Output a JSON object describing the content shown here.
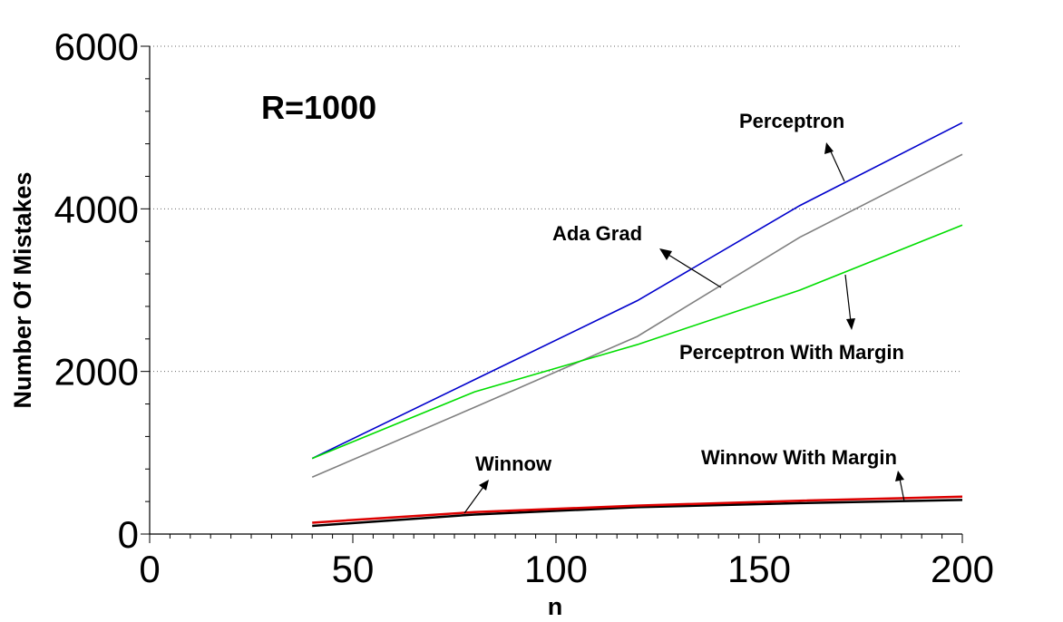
{
  "chart_data": {
    "type": "line",
    "title": "",
    "xlabel": "n",
    "ylabel": "Number Of Mistakes",
    "xlim": [
      0,
      200
    ],
    "ylim": [
      0,
      6000
    ],
    "xticks": [
      0,
      50,
      100,
      150,
      200
    ],
    "yticks": [
      0,
      2000,
      4000,
      6000
    ],
    "grid": "horizontal dotted",
    "x": [
      40,
      80,
      120,
      160,
      200
    ],
    "series": [
      {
        "name": "Perceptron",
        "color": "#0000cc",
        "values": [
          930,
          1900,
          2870,
          4040,
          5060
        ]
      },
      {
        "name": "Ada Grad",
        "color": "#808080",
        "values": [
          700,
          1560,
          2430,
          3650,
          4670
        ]
      },
      {
        "name": "Perceptron With Margin",
        "color": "#00dd00",
        "values": [
          930,
          1750,
          2330,
          3000,
          3800
        ]
      },
      {
        "name": "Winnow",
        "color": "#000000",
        "values": [
          100,
          240,
          330,
          380,
          420
        ]
      },
      {
        "name": "Winnow With Margin",
        "color": "#dd0000",
        "values": [
          140,
          270,
          350,
          410,
          460
        ]
      }
    ],
    "annotations": {
      "r_label": "R=1000",
      "perceptron": "Perceptron",
      "ada_grad": "Ada Grad",
      "perceptron_margin": "Perceptron With Margin",
      "winnow": "Winnow",
      "winnow_margin": "Winnow With Margin"
    }
  }
}
